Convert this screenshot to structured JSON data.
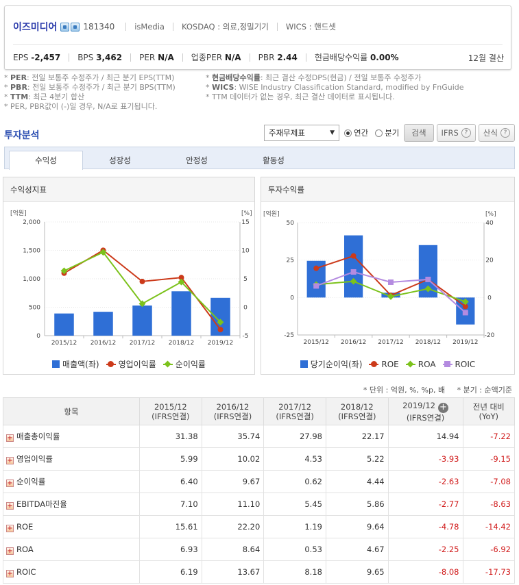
{
  "company": {
    "name": "이즈미디어",
    "code": "181340",
    "eng_name": "isMedia",
    "market": "KOSDAQ : 의료,정밀기기",
    "wics": "WICS : 핸드셋",
    "settlement": "12월 결산",
    "metrics": [
      {
        "label": "EPS",
        "value": "-2,457"
      },
      {
        "label": "BPS",
        "value": "3,462"
      },
      {
        "label": "PER",
        "value": "N/A"
      },
      {
        "label": "업종PER",
        "value": "N/A"
      },
      {
        "label": "PBR",
        "value": "2.44"
      },
      {
        "label": "현금배당수익률",
        "value": "0.00%"
      }
    ]
  },
  "notes": {
    "left": [
      {
        "key": "PER",
        "text": ": 전일 보통주 수정주가 / 최근 분기 EPS(TTM)"
      },
      {
        "key": "PBR",
        "text": ": 전일 보통주 수정주가 / 최근 분기 BPS(TTM)"
      },
      {
        "key": "TTM",
        "text": ": 최근 4분기 합산"
      },
      {
        "key": "",
        "text": "PER, PBR값이 (-)일 경우, N/A로 표기됩니다."
      }
    ],
    "right": [
      {
        "key": "현금배당수익률",
        "text": ": 최근 결산 수정DPS(현금) / 전일 보통주 수정주가"
      },
      {
        "key": "WICS",
        "text": ": WISE Industry Classification Standard, modified by FnGuide"
      },
      {
        "key": "",
        "text": "TTM 데이터가 없는 경우, 최근 결산 데이터로 표시됩니다."
      }
    ]
  },
  "section_title": "투자분석",
  "controls": {
    "select_value": "주재무제표",
    "radio_annual": "연간",
    "radio_quarter": "분기",
    "search": "검색",
    "ifrs": "IFRS",
    "formula": "산식",
    "help_glyph": "?"
  },
  "tabs": [
    "수익성",
    "성장성",
    "안정성",
    "활동성"
  ],
  "panels": {
    "left_title": "수익성지표",
    "right_title": "투자수익률"
  },
  "colors": {
    "bar": "#2f6fd6",
    "op": "#cc3a1a",
    "net": "#7cc21c",
    "roic": "#b48be0"
  },
  "chart_data": [
    {
      "type": "bar",
      "categories": [
        "2015/12",
        "2016/12",
        "2017/12",
        "2018/12",
        "2019/12"
      ],
      "left_unit": "[억원]",
      "right_unit": "[%]",
      "left_ticks": [
        "0",
        "500",
        "1,000",
        "1,500",
        "2,000"
      ],
      "right_ticks": [
        "-5",
        "0",
        "5",
        "10",
        "15"
      ],
      "ylim_left": [
        0,
        2000
      ],
      "ylim_right": [
        -5,
        15
      ],
      "series": [
        {
          "name": "매출액(좌)",
          "kind": "bar",
          "axis": "left",
          "values": [
            390,
            420,
            530,
            780,
            665
          ]
        },
        {
          "name": "영업이익률",
          "kind": "line",
          "axis": "right",
          "marker": "dot",
          "values": [
            5.99,
            10.02,
            4.53,
            5.22,
            -3.93
          ]
        },
        {
          "name": "순이익률",
          "kind": "line",
          "axis": "right",
          "marker": "diamond",
          "values": [
            6.4,
            9.67,
            0.62,
            4.44,
            -2.63
          ]
        }
      ]
    },
    {
      "type": "bar",
      "categories": [
        "2015/12",
        "2016/12",
        "2017/12",
        "2018/12",
        "2019/12"
      ],
      "left_unit": "[억원]",
      "right_unit": "[%]",
      "left_ticks": [
        "-25",
        "0",
        "25",
        "50"
      ],
      "right_ticks": [
        "-20",
        "0",
        "20",
        "40"
      ],
      "ylim_left": [
        -25,
        50
      ],
      "ylim_right": [
        -20,
        40
      ],
      "series": [
        {
          "name": "당기순이익(좌)",
          "kind": "bar",
          "axis": "left",
          "values": [
            24.5,
            41.5,
            3.2,
            35,
            -18
          ]
        },
        {
          "name": "ROE",
          "kind": "line",
          "axis": "right",
          "marker": "dot",
          "values": [
            15.61,
            22.2,
            1.19,
            9.64,
            -4.78
          ]
        },
        {
          "name": "ROA",
          "kind": "line",
          "axis": "right",
          "marker": "diamond",
          "values": [
            6.93,
            8.64,
            0.53,
            4.67,
            -2.25
          ]
        },
        {
          "name": "ROIC",
          "kind": "line",
          "axis": "right",
          "marker": "square",
          "values": [
            6.19,
            13.67,
            8.18,
            9.65,
            -8.08
          ]
        }
      ]
    }
  ],
  "unit_note": "* 단위 : 억원, %, %p, 배",
  "quarter_note": "* 분기 : 순액기준",
  "table": {
    "header_item": "항목",
    "columns": [
      {
        "period": "2015/12",
        "basis": "(IFRS연결)"
      },
      {
        "period": "2016/12",
        "basis": "(IFRS연결)"
      },
      {
        "period": "2017/12",
        "basis": "(IFRS연결)"
      },
      {
        "period": "2018/12",
        "basis": "(IFRS연결)"
      },
      {
        "period": "2019/12",
        "basis": "(IFRS연결)"
      }
    ],
    "yoy_header": "전년 대비",
    "yoy_sub": "(YoY)",
    "rows": [
      {
        "name": "매출총이익률",
        "values": [
          "31.38",
          "35.74",
          "27.98",
          "22.17",
          "14.94"
        ],
        "yoy": "-7.22"
      },
      {
        "name": "영업이익률",
        "values": [
          "5.99",
          "10.02",
          "4.53",
          "5.22",
          "-3.93"
        ],
        "yoy": "-9.15"
      },
      {
        "name": "순이익률",
        "values": [
          "6.40",
          "9.67",
          "0.62",
          "4.44",
          "-2.63"
        ],
        "yoy": "-7.08"
      },
      {
        "name": "EBITDA마진율",
        "values": [
          "7.10",
          "11.10",
          "5.45",
          "5.86",
          "-2.77"
        ],
        "yoy": "-8.63"
      },
      {
        "name": "ROE",
        "values": [
          "15.61",
          "22.20",
          "1.19",
          "9.64",
          "-4.78"
        ],
        "yoy": "-14.42"
      },
      {
        "name": "ROA",
        "values": [
          "6.93",
          "8.64",
          "0.53",
          "4.67",
          "-2.25"
        ],
        "yoy": "-6.92"
      },
      {
        "name": "ROIC",
        "values": [
          "6.19",
          "13.67",
          "8.18",
          "9.65",
          "-8.08"
        ],
        "yoy": "-17.73"
      }
    ]
  }
}
